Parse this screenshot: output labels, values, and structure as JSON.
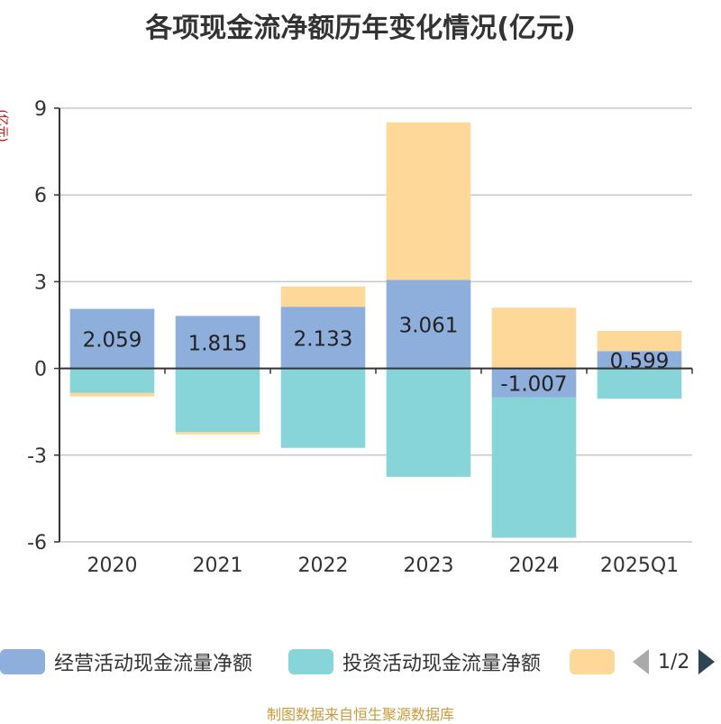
{
  "colors": {
    "operating": "#8eaedb",
    "investing": "#87d5d8",
    "third": "#fdd899",
    "grid": "#c8c8c8",
    "axis": "#333333"
  },
  "legend": {
    "page": "1/2"
  },
  "source": "制图数据来自恒生聚源数据库",
  "chart_data": {
    "type": "bar",
    "stacked": true,
    "title": "各项现金流净额历年变化情况(亿元)",
    "ylabel": "(亿元)",
    "ylim": [
      -6,
      9
    ],
    "yticks": [
      -6,
      -3,
      0,
      3,
      6,
      9
    ],
    "grid": true,
    "legend_position": "bottom",
    "categories": [
      "2020",
      "2021",
      "2022",
      "2023",
      "2024",
      "2025Q1"
    ],
    "series": [
      {
        "name": "经营活动现金流量净额",
        "values": [
          2.059,
          1.815,
          2.133,
          3.061,
          -1.007,
          0.599
        ],
        "labels": [
          "2.059",
          "1.815",
          "2.133",
          "3.061",
          "-1.007",
          "0.599"
        ]
      },
      {
        "name": "投资活动现金流量净额",
        "values": [
          -0.85,
          -2.2,
          -2.75,
          -3.75,
          -4.85,
          -1.05
        ]
      },
      {
        "name": "",
        "values": [
          -0.12,
          -0.08,
          0.7,
          5.45,
          2.1,
          0.7
        ]
      }
    ]
  }
}
